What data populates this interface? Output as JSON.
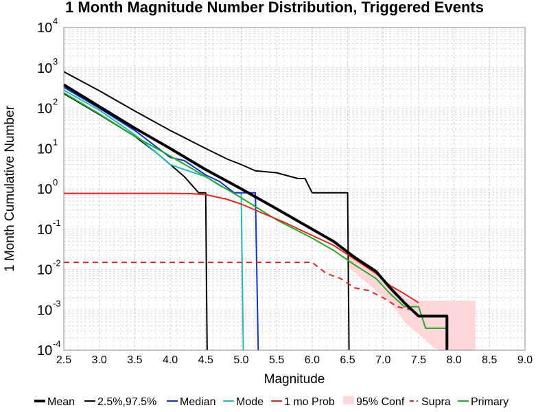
{
  "chart_data": {
    "type": "line",
    "title": "1 Month Magnitude Number Distribution, Triggered Events",
    "xlabel": "Magnitude",
    "ylabel": "1 Month Cumulative Number",
    "xlim": [
      2.5,
      9.0
    ],
    "ylim": [
      0.0001,
      10000
    ],
    "yscale": "log",
    "grid": true,
    "legend_position": "bottom",
    "x_ticks": [
      "2.5",
      "3.0",
      "3.5",
      "4.0",
      "4.5",
      "5.0",
      "5.5",
      "6.0",
      "6.5",
      "7.0",
      "7.5",
      "8.0",
      "8.5",
      "9.0"
    ],
    "y_ticks": [
      {
        "base": "10",
        "exp": "-4",
        "value": 0.0001
      },
      {
        "base": "10",
        "exp": "-3",
        "value": 0.001
      },
      {
        "base": "10",
        "exp": "-2",
        "value": 0.01
      },
      {
        "base": "10",
        "exp": "-1",
        "value": 0.1
      },
      {
        "base": "10",
        "exp": "0",
        "value": 1
      },
      {
        "base": "10",
        "exp": "1",
        "value": 10
      },
      {
        "base": "10",
        "exp": "2",
        "value": 100
      },
      {
        "base": "10",
        "exp": "3",
        "value": 1000
      },
      {
        "base": "10",
        "exp": "4",
        "value": 10000
      }
    ],
    "band": {
      "name": "95% Conf",
      "color": "#ffd6d9",
      "x": [
        6.5,
        6.7,
        6.9,
        7.1,
        7.2,
        7.3,
        7.4,
        7.5,
        7.6,
        7.7,
        7.8,
        7.9,
        8.0,
        8.1,
        8.2,
        8.3
      ],
      "lower": [
        0.012,
        0.006,
        0.003,
        0.0015,
        0.0009,
        0.0005,
        0.00035,
        0.00025,
        0.00018,
        0.00012,
        0.0001,
        0.0001,
        0.0001,
        0.0001,
        0.0001,
        0.0001
      ],
      "upper": [
        0.03,
        0.015,
        0.008,
        0.004,
        0.003,
        0.002,
        0.0017,
        0.0017,
        0.0017,
        0.0017,
        0.0017,
        0.0017,
        0.0017,
        0.0017,
        0.0017,
        0.0017
      ]
    },
    "series": [
      {
        "name": "2.5%,97.5%",
        "color": "#000000",
        "width": 2,
        "dash": "",
        "x": [
          2.5,
          3.0,
          3.5,
          4.0,
          4.5,
          4.8,
          5.0,
          5.2,
          5.5,
          5.8,
          5.9,
          6.0,
          6.5,
          6.5,
          6.52
        ],
        "y": [
          800,
          270,
          85,
          28,
          10,
          5.5,
          4,
          2.8,
          2.5,
          1.8,
          1.8,
          0.8,
          0.8,
          0.8,
          0.0001
        ]
      },
      {
        "name": "2.5%,97.5%",
        "color": "#000000",
        "width": 2,
        "dash": "",
        "x": [
          2.5,
          3.0,
          3.5,
          3.8,
          4.0,
          4.2,
          4.4,
          4.5,
          4.52
        ],
        "y": [
          230,
          70,
          20,
          8,
          4,
          2,
          0.8,
          0.8,
          0.0001
        ]
      },
      {
        "name": "Mode",
        "color": "#22bbbb",
        "width": 2,
        "dash": "",
        "x": [
          2.5,
          3.0,
          3.5,
          3.8,
          4.0,
          4.2,
          4.5,
          4.7,
          4.9,
          5.0,
          5.03
        ],
        "y": [
          280,
          90,
          22,
          8,
          4,
          3,
          2,
          1.2,
          0.8,
          0.8,
          0.0001
        ]
      },
      {
        "name": "Median",
        "color": "#1133cc",
        "width": 2,
        "dash": "",
        "x": [
          2.5,
          3.0,
          3.5,
          4.0,
          4.2,
          4.5,
          4.7,
          4.9,
          5.0,
          5.2,
          5.24
        ],
        "y": [
          330,
          100,
          28,
          6,
          5,
          2.2,
          1.5,
          0.8,
          0.8,
          0.8,
          0.0001
        ]
      },
      {
        "name": "Primary",
        "color": "#22aa22",
        "width": 2,
        "dash": "",
        "x": [
          2.5,
          3.0,
          3.5,
          4.0,
          4.5,
          5.0,
          5.5,
          6.0,
          6.3,
          6.6,
          6.9,
          7.1,
          7.3,
          7.5,
          7.6,
          7.9
        ],
        "y": [
          240,
          72,
          20,
          6.5,
          2,
          0.6,
          0.17,
          0.06,
          0.03,
          0.013,
          0.006,
          0.0025,
          0.0012,
          0.0012,
          0.00035,
          0.00035
        ]
      },
      {
        "name": "1 mo Prob",
        "color": "#ee2222",
        "width": 2,
        "dash": "",
        "x": [
          2.5,
          3.5,
          4.0,
          4.3,
          4.5,
          4.8,
          5.0,
          5.3,
          5.6,
          6.0,
          6.3,
          6.6,
          6.9,
          7.1,
          7.3,
          7.5
        ],
        "y": [
          0.77,
          0.77,
          0.77,
          0.76,
          0.72,
          0.55,
          0.42,
          0.25,
          0.15,
          0.07,
          0.04,
          0.018,
          0.008,
          0.004,
          0.0025,
          0.0015
        ]
      },
      {
        "name": "Supra",
        "color": "#ee2222",
        "width": 2,
        "dash": "8,6",
        "x": [
          2.5,
          4.0,
          5.0,
          6.0,
          6.2,
          6.4,
          6.6,
          6.8,
          7.0,
          7.2,
          7.4
        ],
        "y": [
          0.015,
          0.015,
          0.015,
          0.015,
          0.008,
          0.006,
          0.0035,
          0.003,
          0.002,
          0.0012,
          0.001
        ]
      },
      {
        "name": "Mean",
        "color": "#000000",
        "width": 4,
        "dash": "",
        "x": [
          2.5,
          3.0,
          3.5,
          4.0,
          4.5,
          5.0,
          5.5,
          6.0,
          6.3,
          6.6,
          6.9,
          7.1,
          7.3,
          7.5,
          7.6,
          7.9,
          7.9
        ],
        "y": [
          380,
          110,
          32,
          10,
          3,
          1,
          0.32,
          0.1,
          0.05,
          0.02,
          0.009,
          0.0035,
          0.0015,
          0.0007,
          0.0007,
          0.0007,
          0.0001
        ]
      }
    ],
    "legend": [
      {
        "label": "Mean",
        "color": "#000000",
        "style": "thick"
      },
      {
        "label": "2.5%,97.5%",
        "color": "#000000",
        "style": "line"
      },
      {
        "label": "Median",
        "color": "#1133cc",
        "style": "line"
      },
      {
        "label": "Mode",
        "color": "#22bbbb",
        "style": "line"
      },
      {
        "label": "1 mo Prob",
        "color": "#ee2222",
        "style": "line"
      },
      {
        "label": "95% Conf",
        "color": "#ffd6d9",
        "style": "fill"
      },
      {
        "label": "Supra",
        "color": "#ee2222",
        "style": "dash"
      },
      {
        "label": "Primary",
        "color": "#22aa22",
        "style": "line"
      }
    ]
  }
}
